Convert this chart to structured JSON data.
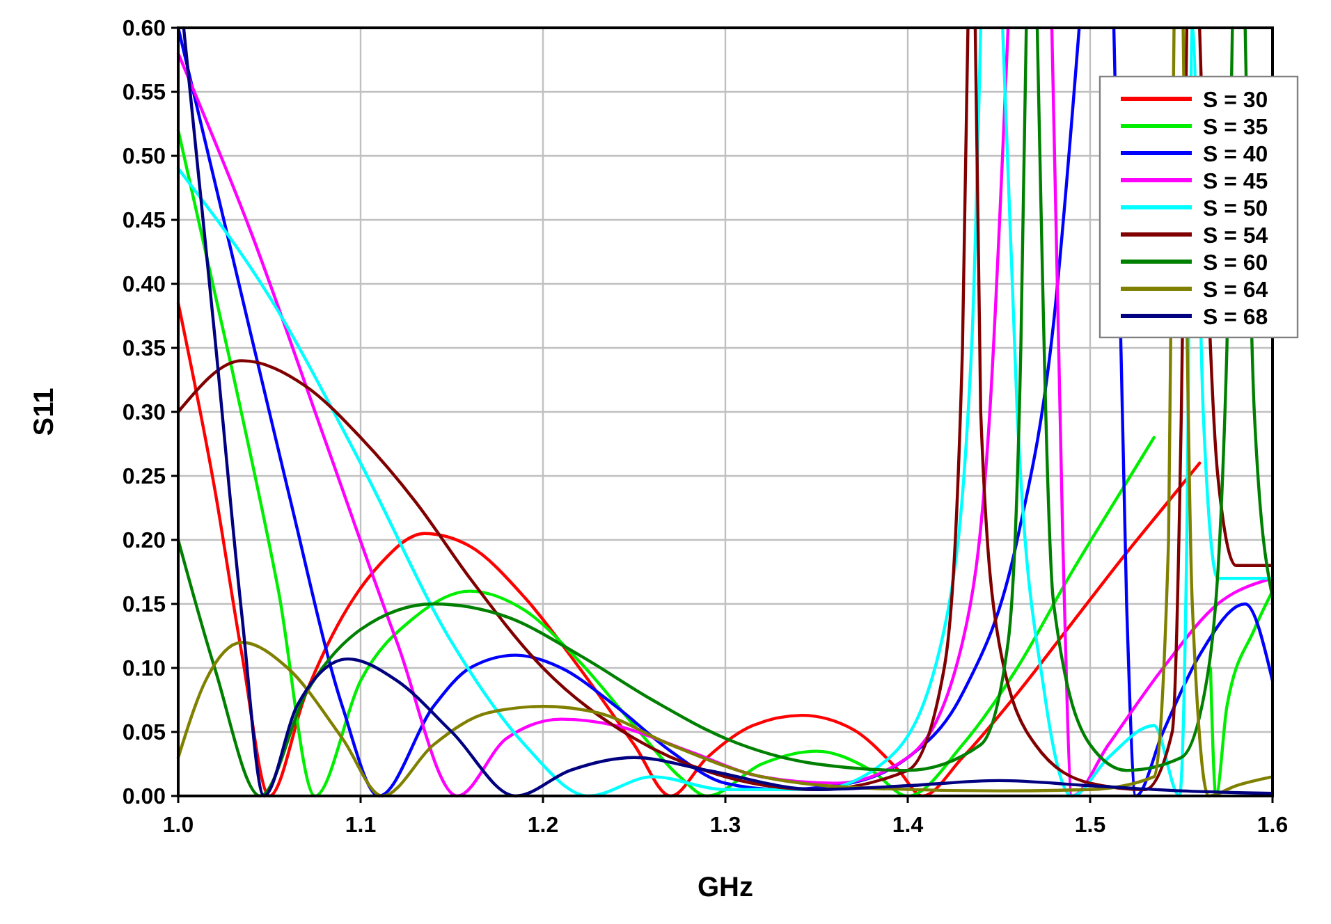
{
  "chart_data": {
    "type": "line",
    "xlabel": "GHz",
    "ylabel": "S11",
    "xlim": [
      1.0,
      1.6
    ],
    "ylim": [
      0,
      0.6
    ],
    "xticks": [
      {
        "value": 1.0,
        "label": "1.0"
      },
      1.1,
      1.2,
      1.3,
      1.4,
      1.5,
      1.6
    ],
    "yticks": [
      {
        "value": 0,
        "label": "0.00"
      },
      0.05,
      {
        "value": 0.1,
        "label": "0.10"
      },
      0.15,
      {
        "value": 0.2,
        "label": "0.20"
      },
      0.25,
      {
        "value": 0.3,
        "label": "0.30"
      },
      0.35,
      {
        "value": 0.4,
        "label": "0.40"
      },
      0.45,
      {
        "value": 0.5,
        "label": "0.50"
      },
      0.55,
      {
        "value": 0.6,
        "label": "0.60"
      }
    ],
    "grid": true,
    "legend": "top right",
    "line_style": "solid",
    "series": [
      {
        "name": "S = 30",
        "color": "#ff0000",
        "x": [
          1.0,
          1.02,
          1.035,
          1.05,
          1.07,
          1.09,
          1.11,
          1.135,
          1.16,
          1.19,
          1.22,
          1.25,
          1.27,
          1.29,
          1.315,
          1.342,
          1.37,
          1.395,
          1.408,
          1.43,
          1.46,
          1.49,
          1.52,
          1.54,
          1.56
        ],
        "values": [
          0.385,
          0.24,
          0.11,
          0,
          0.08,
          0.14,
          0.18,
          0.205,
          0.195,
          0.155,
          0.1,
          0.04,
          0,
          0.03,
          0.055,
          0.063,
          0.052,
          0.02,
          0,
          0.03,
          0.08,
          0.135,
          0.19,
          0.225,
          0.26
        ]
      },
      {
        "name": "S = 35",
        "color": "#00ee00",
        "x": [
          1.0,
          1.03,
          1.055,
          1.075,
          1.1,
          1.13,
          1.16,
          1.19,
          1.22,
          1.25,
          1.275,
          1.29,
          1.32,
          1.35,
          1.38,
          1.4,
          1.43,
          1.46,
          1.49,
          1.52,
          1.535,
          1.563,
          1.566,
          1.569,
          1.575,
          1.59,
          1.6
        ],
        "values": [
          0.52,
          0.33,
          0.16,
          0,
          0.09,
          0.14,
          0.16,
          0.145,
          0.105,
          0.055,
          0.015,
          0,
          0.025,
          0.035,
          0.02,
          0,
          0.04,
          0.1,
          0.175,
          0.245,
          0.28,
          null,
          0.1,
          0,
          0.07,
          0.13,
          0.16
        ]
      },
      {
        "name": "S = 40",
        "color": "#0000ff",
        "x": [
          1.0,
          1.03,
          1.06,
          1.09,
          1.11,
          1.14,
          1.16,
          1.185,
          1.21,
          1.24,
          1.27,
          1.3,
          1.33,
          1.36,
          1.4,
          1.43,
          1.46,
          1.48,
          1.494,
          1.5,
          1.513,
          1.52,
          1.525,
          1.54,
          1.56,
          1.585,
          1.6
        ],
        "values": [
          0.6,
          0.42,
          0.24,
          0.07,
          0,
          0.07,
          0.1,
          0.11,
          0.1,
          0.07,
          0.035,
          0.01,
          0.005,
          0.008,
          0.03,
          0.08,
          0.2,
          0.37,
          0.6,
          null,
          0.6,
          0.15,
          0,
          0.05,
          0.11,
          0.15,
          0.09
        ]
      },
      {
        "name": "S = 45",
        "color": "#ff00ff",
        "x": [
          1.0,
          1.04,
          1.08,
          1.12,
          1.153,
          1.18,
          1.21,
          1.24,
          1.28,
          1.32,
          1.36,
          1.4,
          1.43,
          1.445,
          1.455,
          1.465,
          1.479,
          1.485,
          1.49,
          1.51,
          1.54,
          1.57,
          1.6
        ],
        "values": [
          0.58,
          0.44,
          0.28,
          0.12,
          0,
          0.045,
          0.06,
          0.055,
          0.035,
          0.015,
          0.01,
          0.03,
          0.12,
          0.3,
          0.6,
          null,
          0.6,
          0.2,
          0,
          0.04,
          0.1,
          0.15,
          0.17
        ]
      },
      {
        "name": "S = 50",
        "color": "#00ffff",
        "x": [
          1.0,
          1.05,
          1.1,
          1.15,
          1.19,
          1.225,
          1.26,
          1.3,
          1.35,
          1.39,
          1.42,
          1.435,
          1.44,
          1.446,
          1.452,
          1.46,
          1.475,
          1.49,
          1.51,
          1.535,
          1.549,
          1.553,
          1.556,
          1.562,
          1.57,
          1.6
        ],
        "values": [
          0.49,
          0.39,
          0.26,
          0.12,
          0.04,
          0,
          0.015,
          0.005,
          0.005,
          0.03,
          0.13,
          0.35,
          0.6,
          null,
          0.6,
          0.3,
          0.08,
          0,
          0.03,
          0.055,
          0,
          0.2,
          0.6,
          0.3,
          0.17,
          0.17
        ]
      },
      {
        "name": "S = 54",
        "color": "#800000",
        "x": [
          1.0,
          1.035,
          1.07,
          1.1,
          1.13,
          1.16,
          1.2,
          1.25,
          1.3,
          1.35,
          1.4,
          1.42,
          1.43,
          1.433,
          1.435,
          1.437,
          1.44,
          1.45,
          1.47,
          1.5,
          1.53,
          1.545,
          1.55,
          1.553,
          1.556,
          1.56,
          1.57,
          1.58,
          1.6
        ],
        "values": [
          0.3,
          0.34,
          0.32,
          0.28,
          0.23,
          0.17,
          0.1,
          0.045,
          0.015,
          0.005,
          0.02,
          0.1,
          0.35,
          0.6,
          null,
          0.6,
          0.3,
          0.12,
          0.04,
          0.01,
          0.005,
          0.05,
          0.3,
          0.6,
          null,
          0.6,
          0.25,
          0.18,
          0.18
        ]
      },
      {
        "name": "S = 60",
        "color": "#008000",
        "x": [
          1.0,
          1.02,
          1.045,
          1.07,
          1.1,
          1.14,
          1.18,
          1.22,
          1.26,
          1.3,
          1.35,
          1.4,
          1.44,
          1.455,
          1.462,
          1.465,
          1.468,
          1.471,
          1.48,
          1.5,
          1.52,
          1.55,
          1.565,
          1.575,
          1.578,
          1.582,
          1.585,
          1.59,
          1.6
        ],
        "values": [
          0.2,
          0.1,
          0,
          0.08,
          0.13,
          0.15,
          0.14,
          0.11,
          0.075,
          0.045,
          0.025,
          0.02,
          0.04,
          0.12,
          0.35,
          0.6,
          null,
          0.6,
          0.15,
          0.04,
          0.02,
          0.03,
          0.1,
          0.35,
          0.6,
          null,
          0.6,
          0.3,
          0.155
        ]
      },
      {
        "name": "S = 64",
        "color": "#808000",
        "x": [
          1.0,
          1.015,
          1.035,
          1.06,
          1.09,
          1.112,
          1.14,
          1.17,
          1.2,
          1.23,
          1.27,
          1.32,
          1.38,
          1.45,
          1.5,
          1.535,
          1.543,
          1.546,
          1.548,
          1.551,
          1.556,
          1.565,
          1.58,
          1.6
        ],
        "values": [
          0.03,
          0.09,
          0.12,
          0.1,
          0.045,
          0,
          0.04,
          0.065,
          0.07,
          0.065,
          0.04,
          0.015,
          0.006,
          0.004,
          0.005,
          0.015,
          0.2,
          0.6,
          null,
          0.6,
          0.15,
          0,
          0.008,
          0.015
        ]
      },
      {
        "name": "S = 68",
        "color": "#000080",
        "x": [
          1.003,
          1.02,
          1.035,
          1.047,
          1.065,
          1.093,
          1.12,
          1.15,
          1.185,
          1.215,
          1.25,
          1.29,
          1.35,
          1.4,
          1.45,
          1.5,
          1.55,
          1.6
        ],
        "values": [
          0.6,
          0.36,
          0.14,
          0,
          0.07,
          0.107,
          0.09,
          0.05,
          0,
          0.02,
          0.03,
          0.02,
          0.005,
          0.008,
          0.012,
          0.008,
          0.004,
          0.002
        ]
      }
    ]
  }
}
